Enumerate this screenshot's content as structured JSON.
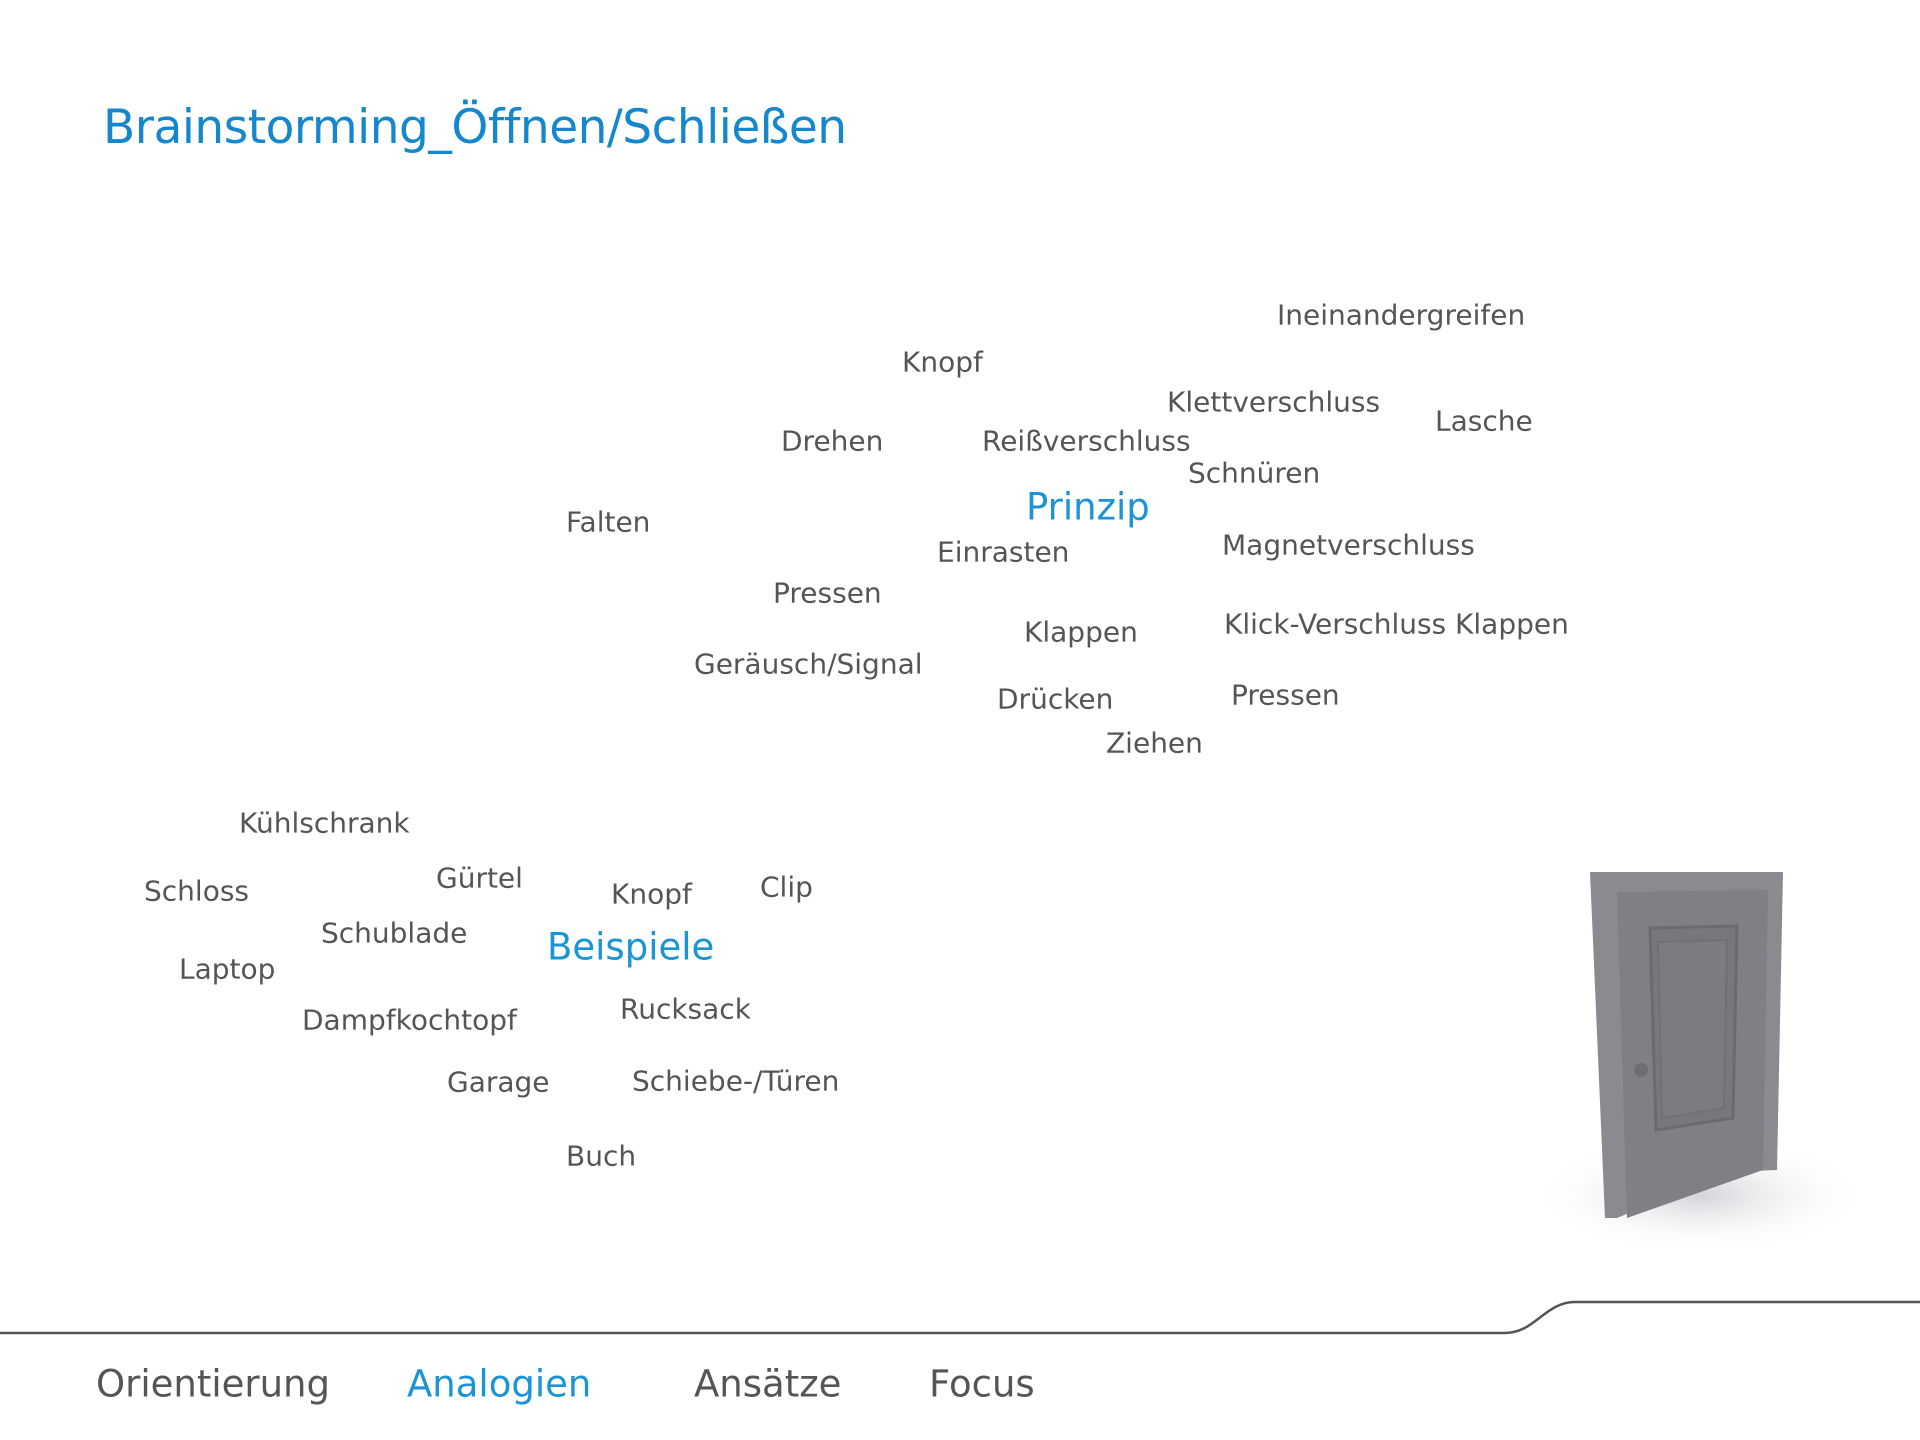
{
  "title": "Brainstorming_Öffnen/Schließen",
  "colors": {
    "accent": "#1b94d6",
    "text": "#555555"
  },
  "prinzip": {
    "heading": "Prinzip",
    "words": [
      "Ineinandergreifen",
      "Knopf",
      "Klettverschluss",
      "Lasche",
      "Drehen",
      "Reißverschluss",
      "Schnüren",
      "Falten",
      "Einrasten",
      "Magnetverschluss",
      "Pressen",
      "Klappen",
      "Klick-Verschluss Klappen",
      "Geräusch/Signal",
      "Drücken",
      "Pressen",
      "Ziehen"
    ]
  },
  "beispiele": {
    "heading": "Beispiele",
    "words": [
      "Kühlschrank",
      "Schloss",
      "Gürtel",
      "Knopf",
      "Clip",
      "Schublade",
      "Laptop",
      "Dampfkochtopf",
      "Rucksack",
      "Garage",
      "Schiebe-/Türen",
      "Buch"
    ]
  },
  "image": "door-icon",
  "nav": {
    "items": [
      "Orientierung",
      "Analogien",
      "Ansätze",
      "Focus"
    ],
    "active": "Analogien"
  }
}
